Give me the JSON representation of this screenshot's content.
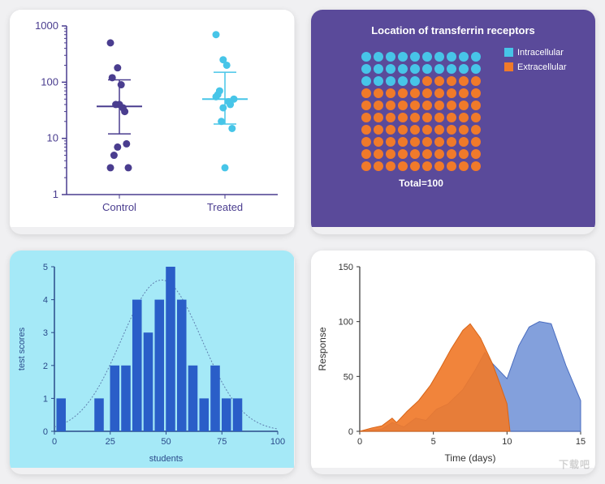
{
  "scatter_chart": {
    "type": "scatter",
    "background_color": "#ffffff",
    "axis_color": "#4a3d8f",
    "yscale": "log",
    "ylim": [
      1,
      1000
    ],
    "ytick_labels": [
      "1",
      "10",
      "100",
      "1000"
    ],
    "categories": [
      "Control",
      "Treated"
    ],
    "marker_radius": 4.5,
    "label_fontsize": 13,
    "label_color": "#4a3d8f",
    "series": [
      {
        "name": "Control",
        "color": "#4a3d8f",
        "values": [
          500,
          180,
          30,
          120,
          40,
          8,
          5,
          90,
          3,
          40,
          35,
          3,
          7
        ],
        "mean": 37,
        "err_low": 12,
        "err_high": 110,
        "mean_color": "#4a3d8f"
      },
      {
        "name": "Treated",
        "color": "#47c5e8",
        "values": [
          700,
          250,
          40,
          60,
          3,
          15,
          70,
          200,
          50,
          20,
          45,
          55,
          35
        ],
        "mean": 50,
        "err_low": 18,
        "err_high": 150,
        "mean_color": "#47c5e8"
      }
    ]
  },
  "dot_grid_chart": {
    "type": "infographic",
    "background_color": "#5a4a9a",
    "title": "Location of transferrin receptors",
    "title_color": "#ffffff",
    "title_fontsize": 13,
    "title_fontweight": "bold",
    "total_label": "Total=100",
    "total_fontsize": 12,
    "total_color": "#ffffff",
    "legend": [
      {
        "label": "Intracellular",
        "color": "#47c5e8"
      },
      {
        "label": "Extracellular",
        "color": "#f07a2a"
      }
    ],
    "legend_fontsize": 11,
    "grid_cols": 10,
    "grid_rows": 10,
    "dot_radius": 6,
    "dot_gap": 15,
    "intracellular_count": 25,
    "colors": {
      "intra": "#47c5e8",
      "extra": "#f07a2a"
    }
  },
  "histogram_chart": {
    "type": "histogram",
    "background_color": "#a5e9f7",
    "axis_color": "#2a4a8a",
    "bar_color": "#2a5ec8",
    "curve_color": "#6080b0",
    "xlabel": "students",
    "ylabel": "test scores",
    "label_fontsize": 11,
    "label_color": "#2a4a8a",
    "xlim": [
      0,
      100
    ],
    "ylim": [
      0,
      5
    ],
    "xtick_step": 25,
    "ytick_step": 1,
    "bar_width": 4.2,
    "bars": [
      {
        "x": 3,
        "y": 1
      },
      {
        "x": 20,
        "y": 1
      },
      {
        "x": 27,
        "y": 2
      },
      {
        "x": 32,
        "y": 2
      },
      {
        "x": 37,
        "y": 4
      },
      {
        "x": 42,
        "y": 3
      },
      {
        "x": 47,
        "y": 4
      },
      {
        "x": 52,
        "y": 5
      },
      {
        "x": 57,
        "y": 4
      },
      {
        "x": 62,
        "y": 2
      },
      {
        "x": 67,
        "y": 1
      },
      {
        "x": 72,
        "y": 2
      },
      {
        "x": 77,
        "y": 1
      },
      {
        "x": 82,
        "y": 1
      }
    ]
  },
  "area_chart": {
    "type": "area",
    "background_color": "#ffffff",
    "axis_color": "#333333",
    "xlabel": "Time (days)",
    "ylabel": "Response",
    "label_fontsize": 12,
    "label_color": "#333333",
    "xlim": [
      0,
      15
    ],
    "ylim": [
      0,
      150
    ],
    "xtick_step": 5,
    "ytick_step": 50,
    "series": [
      {
        "name": "blue",
        "fill": "#6d8fd6",
        "fill_opacity": 0.85,
        "stroke": "#4a6dc0",
        "points": [
          {
            "x": 0,
            "y": 0
          },
          {
            "x": 1.5,
            "y": 2
          },
          {
            "x": 2.2,
            "y": 8
          },
          {
            "x": 3,
            "y": 4
          },
          {
            "x": 3.8,
            "y": 12
          },
          {
            "x": 4.5,
            "y": 10
          },
          {
            "x": 5.2,
            "y": 20
          },
          {
            "x": 6,
            "y": 25
          },
          {
            "x": 7,
            "y": 38
          },
          {
            "x": 7.8,
            "y": 55
          },
          {
            "x": 8.5,
            "y": 72
          },
          {
            "x": 9,
            "y": 62
          },
          {
            "x": 10,
            "y": 48
          },
          {
            "x": 10.8,
            "y": 78
          },
          {
            "x": 11.5,
            "y": 95
          },
          {
            "x": 12.2,
            "y": 100
          },
          {
            "x": 13,
            "y": 98
          },
          {
            "x": 14,
            "y": 60
          },
          {
            "x": 15,
            "y": 28
          }
        ]
      },
      {
        "name": "orange",
        "fill": "#f07a2a",
        "fill_opacity": 0.92,
        "stroke": "#d86518",
        "points": [
          {
            "x": 0,
            "y": 0
          },
          {
            "x": 0.8,
            "y": 3
          },
          {
            "x": 1.5,
            "y": 5
          },
          {
            "x": 2.2,
            "y": 12
          },
          {
            "x": 2.5,
            "y": 8
          },
          {
            "x": 3.2,
            "y": 18
          },
          {
            "x": 4,
            "y": 28
          },
          {
            "x": 4.8,
            "y": 42
          },
          {
            "x": 5.5,
            "y": 58
          },
          {
            "x": 6.2,
            "y": 75
          },
          {
            "x": 7,
            "y": 92
          },
          {
            "x": 7.5,
            "y": 98
          },
          {
            "x": 8.2,
            "y": 85
          },
          {
            "x": 9,
            "y": 62
          },
          {
            "x": 9.5,
            "y": 44
          },
          {
            "x": 10,
            "y": 25
          },
          {
            "x": 10.2,
            "y": 0
          }
        ]
      }
    ]
  },
  "watermark": "下载吧"
}
